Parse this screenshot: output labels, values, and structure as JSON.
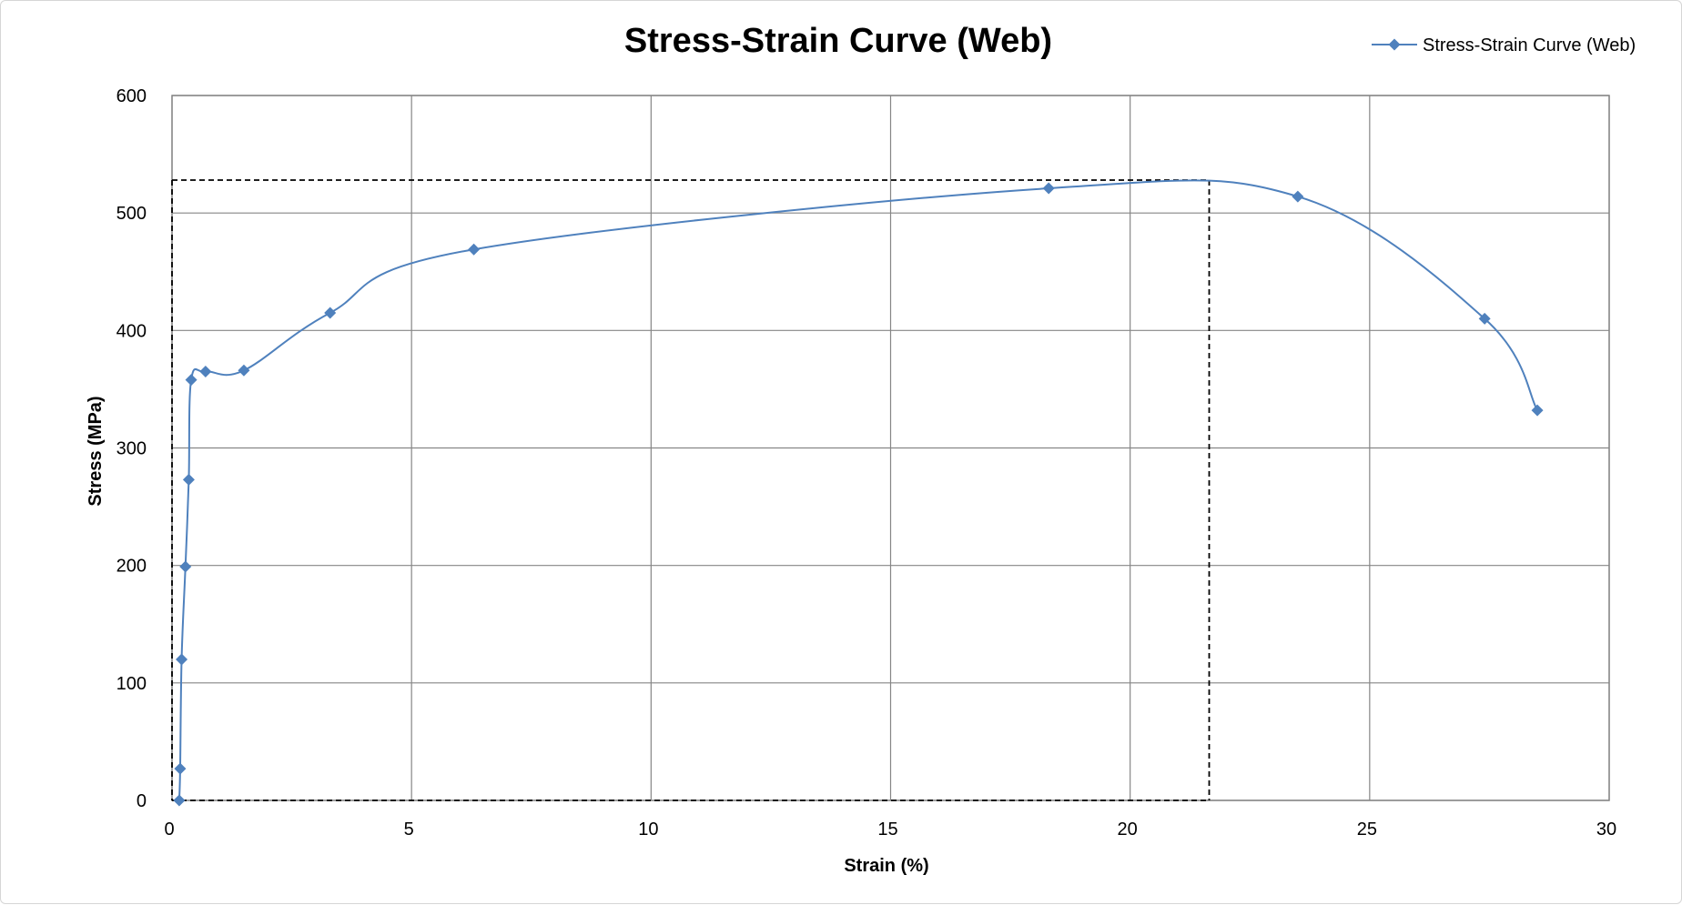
{
  "chart_data": {
    "type": "scatter",
    "title": "Stress-Strain Curve (Web)",
    "xlabel": "Strain (%)",
    "ylabel": "Stress (MPa)",
    "xlim": [
      0,
      30
    ],
    "ylim": [
      0,
      600
    ],
    "xticks": [
      0,
      5,
      10,
      15,
      20,
      25,
      30
    ],
    "yticks": [
      0,
      100,
      200,
      300,
      400,
      500,
      600
    ],
    "grid": true,
    "legend_position": "top-right",
    "series": [
      {
        "name": "Stress-Strain Curve (Web)",
        "color": "#4f81bd",
        "marker": "diamond",
        "smooth": true,
        "x": [
          0.15,
          0.17,
          0.2,
          0.28,
          0.35,
          0.4,
          0.7,
          1.5,
          3.3,
          6.3,
          18.3,
          23.5,
          27.4,
          28.5
        ],
        "y": [
          0,
          27,
          120,
          199,
          273,
          358,
          365,
          366,
          415,
          469,
          521,
          514,
          410,
          332
        ]
      }
    ],
    "reference_lines": {
      "max_stress": 528,
      "strain_at_max": 21.65,
      "style": "dashed",
      "color": "#000000"
    }
  }
}
